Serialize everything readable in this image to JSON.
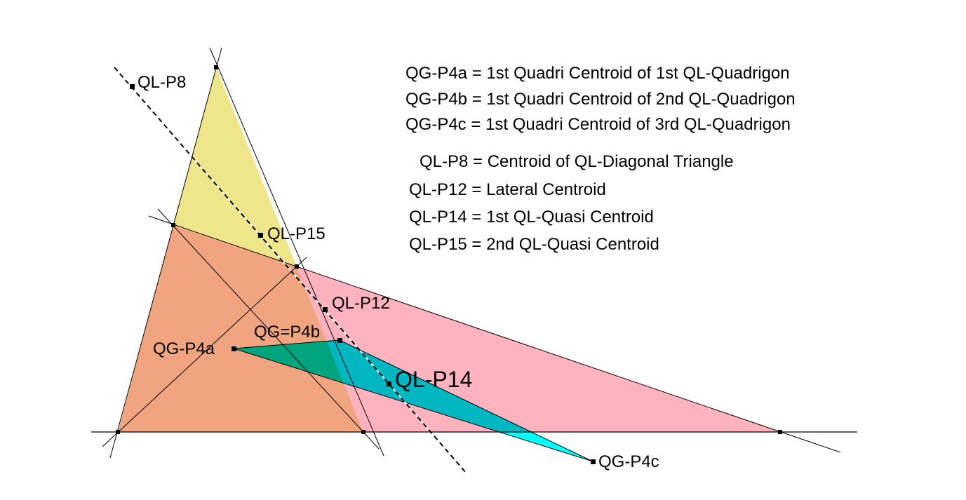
{
  "colors": {
    "upper_triangle": "#efe68c",
    "left_quadrilateral": "#f0a47f",
    "right_triangle": "#ffb3bf",
    "quadrigon_in_left": "#00a47d",
    "quadrigon_in_right": "#00b6c0",
    "quadrigon_outside": "#00ffff"
  },
  "labels": {
    "p8": "QL-P8",
    "p15": "QL-P15",
    "p12": "QL-P12",
    "p14": "QL-P14",
    "p4a": "QG-P4a",
    "p4b": "QG=P4b",
    "p4c": "QG-P4c"
  },
  "legend": [
    "QG-P4a = 1st Quadri Centroid of 1st QL-Quadrigon",
    "QG-P4b = 1st Quadri Centroid of 2nd QL-Quadrigon",
    "QG-P4c = 1st Quadri Centroid of 3rd QL-Quadrigon",
    "QL-P8 = Centroid of QL-Diagonal Triangle",
    "QL-P12 = Lateral Centroid",
    "QL-P14 = 1st QL-Quasi Centroid",
    "QL-P15 = 2nd QL-Quasi Centroid"
  ]
}
